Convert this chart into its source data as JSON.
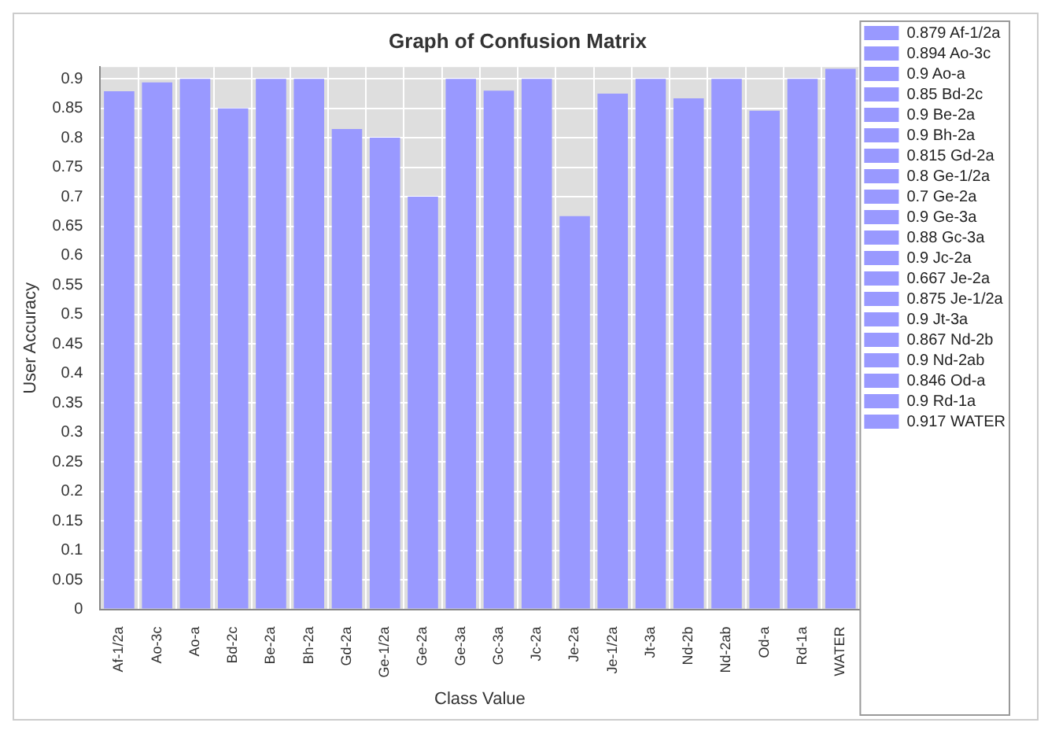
{
  "chart_data": {
    "type": "bar",
    "title": "Graph of Confusion Matrix",
    "xlabel": "Class Value",
    "ylabel": "User Accuracy",
    "categories": [
      "Af-1/2a",
      "Ao-3c",
      "Ao-a",
      "Bd-2c",
      "Be-2a",
      "Bh-2a",
      "Gd-2a",
      "Ge-1/2a",
      "Ge-2a",
      "Ge-3a",
      "Gc-3a",
      "Jc-2a",
      "Je-2a",
      "Je-1/2a",
      "Jt-3a",
      "Nd-2b",
      "Nd-2ab",
      "Od-a",
      "Rd-1a",
      "WATER"
    ],
    "series": [
      {
        "name": "0.879 Af-1/2a",
        "color": "#9999ff",
        "values": [
          0.879,
          null,
          null,
          null,
          null,
          null,
          null,
          null,
          null,
          null,
          null,
          null,
          null,
          null,
          null,
          null,
          null,
          null,
          null,
          null
        ]
      },
      {
        "name": "0.894 Ao-3c",
        "color": "#9999ff",
        "values": [
          null,
          0.894,
          null,
          null,
          null,
          null,
          null,
          null,
          null,
          null,
          null,
          null,
          null,
          null,
          null,
          null,
          null,
          null,
          null,
          null
        ]
      },
      {
        "name": "0.9 Ao-a",
        "color": "#9999ff",
        "values": [
          null,
          null,
          0.9,
          null,
          null,
          null,
          null,
          null,
          null,
          null,
          null,
          null,
          null,
          null,
          null,
          null,
          null,
          null,
          null,
          null
        ]
      },
      {
        "name": "0.85 Bd-2c",
        "color": "#9999ff",
        "values": [
          null,
          null,
          null,
          0.85,
          null,
          null,
          null,
          null,
          null,
          null,
          null,
          null,
          null,
          null,
          null,
          null,
          null,
          null,
          null,
          null
        ]
      },
      {
        "name": "0.9 Be-2a",
        "color": "#9999ff",
        "values": [
          null,
          null,
          null,
          null,
          0.9,
          null,
          null,
          null,
          null,
          null,
          null,
          null,
          null,
          null,
          null,
          null,
          null,
          null,
          null,
          null
        ]
      },
      {
        "name": "0.9 Bh-2a",
        "color": "#9999ff",
        "values": [
          null,
          null,
          null,
          null,
          null,
          0.9,
          null,
          null,
          null,
          null,
          null,
          null,
          null,
          null,
          null,
          null,
          null,
          null,
          null,
          null
        ]
      },
      {
        "name": "0.815 Gd-2a",
        "color": "#9999ff",
        "values": [
          null,
          null,
          null,
          null,
          null,
          null,
          0.815,
          null,
          null,
          null,
          null,
          null,
          null,
          null,
          null,
          null,
          null,
          null,
          null,
          null
        ]
      },
      {
        "name": "0.8 Ge-1/2a",
        "color": "#9999ff",
        "values": [
          null,
          null,
          null,
          null,
          null,
          null,
          null,
          0.8,
          null,
          null,
          null,
          null,
          null,
          null,
          null,
          null,
          null,
          null,
          null,
          null
        ]
      },
      {
        "name": "0.7 Ge-2a",
        "color": "#9999ff",
        "values": [
          null,
          null,
          null,
          null,
          null,
          null,
          null,
          null,
          0.7,
          null,
          null,
          null,
          null,
          null,
          null,
          null,
          null,
          null,
          null,
          null
        ]
      },
      {
        "name": "0.9 Ge-3a",
        "color": "#9999ff",
        "values": [
          null,
          null,
          null,
          null,
          null,
          null,
          null,
          null,
          null,
          0.9,
          null,
          null,
          null,
          null,
          null,
          null,
          null,
          null,
          null,
          null
        ]
      },
      {
        "name": "0.88 Gc-3a",
        "color": "#9999ff",
        "values": [
          null,
          null,
          null,
          null,
          null,
          null,
          null,
          null,
          null,
          null,
          0.88,
          null,
          null,
          null,
          null,
          null,
          null,
          null,
          null,
          null
        ]
      },
      {
        "name": "0.9 Jc-2a",
        "color": "#9999ff",
        "values": [
          null,
          null,
          null,
          null,
          null,
          null,
          null,
          null,
          null,
          null,
          null,
          0.9,
          null,
          null,
          null,
          null,
          null,
          null,
          null,
          null
        ]
      },
      {
        "name": "0.667 Je-2a",
        "color": "#9999ff",
        "values": [
          null,
          null,
          null,
          null,
          null,
          null,
          null,
          null,
          null,
          null,
          null,
          null,
          0.667,
          null,
          null,
          null,
          null,
          null,
          null,
          null
        ]
      },
      {
        "name": "0.875 Je-1/2a",
        "color": "#9999ff",
        "values": [
          null,
          null,
          null,
          null,
          null,
          null,
          null,
          null,
          null,
          null,
          null,
          null,
          null,
          0.875,
          null,
          null,
          null,
          null,
          null,
          null
        ]
      },
      {
        "name": "0.9 Jt-3a",
        "color": "#9999ff",
        "values": [
          null,
          null,
          null,
          null,
          null,
          null,
          null,
          null,
          null,
          null,
          null,
          null,
          null,
          null,
          0.9,
          null,
          null,
          null,
          null,
          null
        ]
      },
      {
        "name": "0.867 Nd-2b",
        "color": "#9999ff",
        "values": [
          null,
          null,
          null,
          null,
          null,
          null,
          null,
          null,
          null,
          null,
          null,
          null,
          null,
          null,
          null,
          0.867,
          null,
          null,
          null,
          null
        ]
      },
      {
        "name": "0.9 Nd-2ab",
        "color": "#9999ff",
        "values": [
          null,
          null,
          null,
          null,
          null,
          null,
          null,
          null,
          null,
          null,
          null,
          null,
          null,
          null,
          null,
          null,
          0.9,
          null,
          null,
          null
        ]
      },
      {
        "name": "0.846 Od-a",
        "color": "#9999ff",
        "values": [
          null,
          null,
          null,
          null,
          null,
          null,
          null,
          null,
          null,
          null,
          null,
          null,
          null,
          null,
          null,
          null,
          null,
          0.846,
          null,
          null
        ]
      },
      {
        "name": "0.9 Rd-1a",
        "color": "#9999ff",
        "values": [
          null,
          null,
          null,
          null,
          null,
          null,
          null,
          null,
          null,
          null,
          null,
          null,
          null,
          null,
          null,
          null,
          null,
          null,
          0.9,
          null
        ]
      },
      {
        "name": "0.917 WATER",
        "color": "#9999ff",
        "values": [
          null,
          null,
          null,
          null,
          null,
          null,
          null,
          null,
          null,
          null,
          null,
          null,
          null,
          null,
          null,
          null,
          null,
          null,
          null,
          0.917
        ]
      }
    ],
    "ylim": [
      0,
      0.92
    ],
    "yticks": [
      0,
      0.05,
      0.1,
      0.15,
      0.2,
      0.25,
      0.3,
      0.35,
      0.4,
      0.45,
      0.5,
      0.55,
      0.6,
      0.65,
      0.7,
      0.75,
      0.8,
      0.85,
      0.9
    ],
    "grid": true,
    "legend": "right"
  }
}
